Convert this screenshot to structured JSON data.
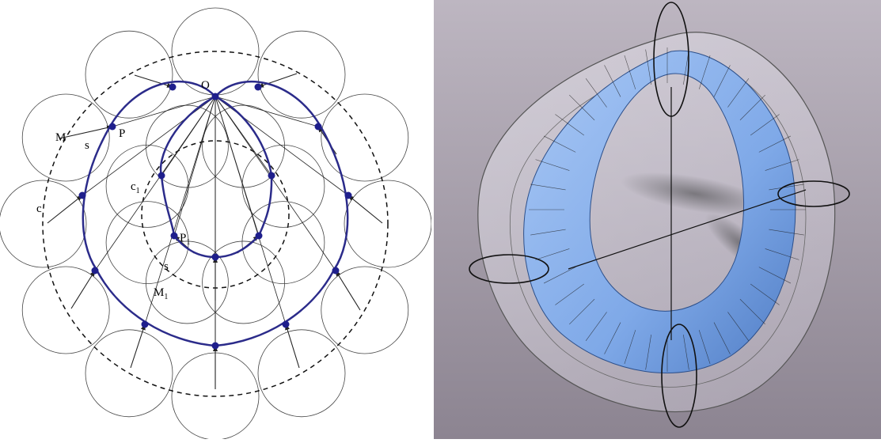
{
  "left_diagram": {
    "labels": {
      "O": "O",
      "P": "P",
      "M": "M",
      "s_outer": "s",
      "c": "c",
      "c_inner_base": "c",
      "c_inner_sub": "1",
      "P1_base": "P",
      "P1_sub": "1",
      "s_inner": "s",
      "M1_base": "M",
      "M1_sub": "1"
    },
    "colors": {
      "curve": "#2b2b8a",
      "points": "#1f1f8c",
      "lines": "#222222",
      "circles": "#333333"
    }
  },
  "right_render": {
    "colors": {
      "background_top": "#b9b2bd",
      "background_bottom": "#8e8693",
      "tube": "#8fb6ee",
      "tube_dark": "#4a78c0"
    }
  }
}
